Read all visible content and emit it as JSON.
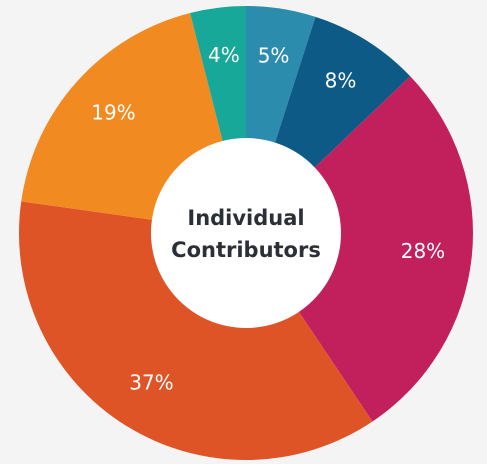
{
  "chart_data": {
    "type": "donut",
    "center_label": [
      "Individual",
      "Contributors"
    ],
    "categories": [
      null,
      null,
      null,
      null,
      null,
      null
    ],
    "values": [
      5,
      8,
      28,
      37,
      19,
      4
    ],
    "value_labels": [
      "5%",
      "8%",
      "28%",
      "37%",
      "19%",
      "4%"
    ],
    "colors": [
      "#2b8cae",
      "#0e5a87",
      "#c21f5d",
      "#df5427",
      "#f28a22",
      "#17a899"
    ]
  }
}
